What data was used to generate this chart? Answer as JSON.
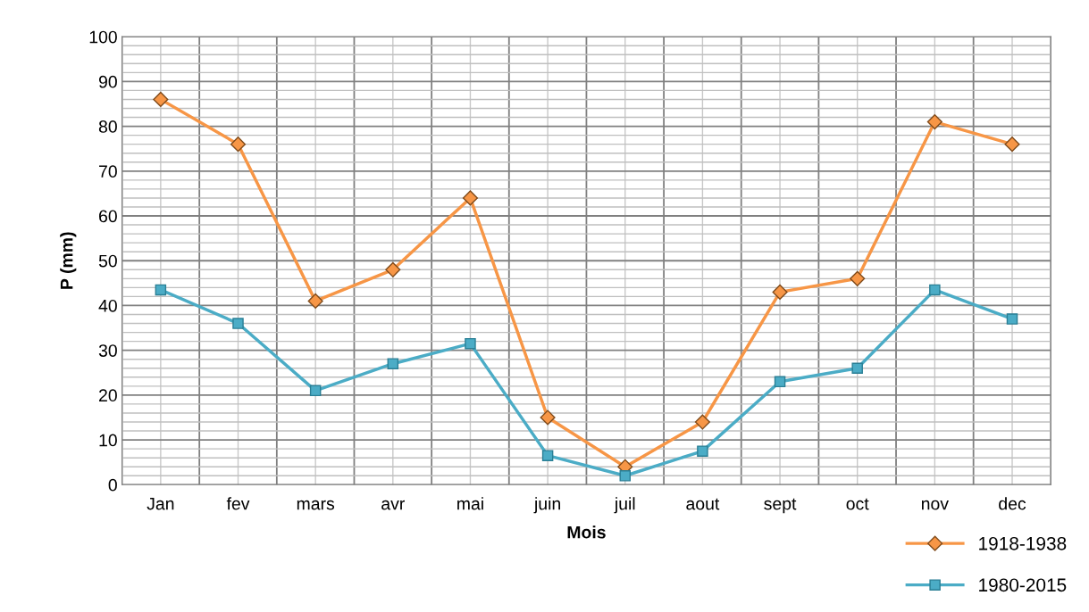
{
  "chart_data": {
    "type": "line",
    "xlabel": "Mois",
    "ylabel": "P (mm)",
    "categories": [
      "Jan",
      "fev",
      "mars",
      "avr",
      "mai",
      "juin",
      "juil",
      "aout",
      "sept",
      "oct",
      "nov",
      "dec"
    ],
    "series": [
      {
        "name": "1918-1938",
        "color": "#f79646",
        "marker": "diamond",
        "values": [
          86,
          76,
          41,
          48,
          64,
          15,
          4,
          14,
          43,
          46,
          81,
          76
        ]
      },
      {
        "name": "1980-2015",
        "color": "#4bacc6",
        "marker": "square",
        "values": [
          43.5,
          36,
          21,
          27,
          31.5,
          6.5,
          2,
          7.5,
          23,
          26,
          43.5,
          37
        ]
      }
    ],
    "ylim": [
      0,
      100
    ],
    "yticks": [
      0,
      10,
      20,
      30,
      40,
      50,
      60,
      70,
      80,
      90,
      100
    ],
    "grid": true,
    "legend": "bottom right",
    "line_style": "solid"
  }
}
